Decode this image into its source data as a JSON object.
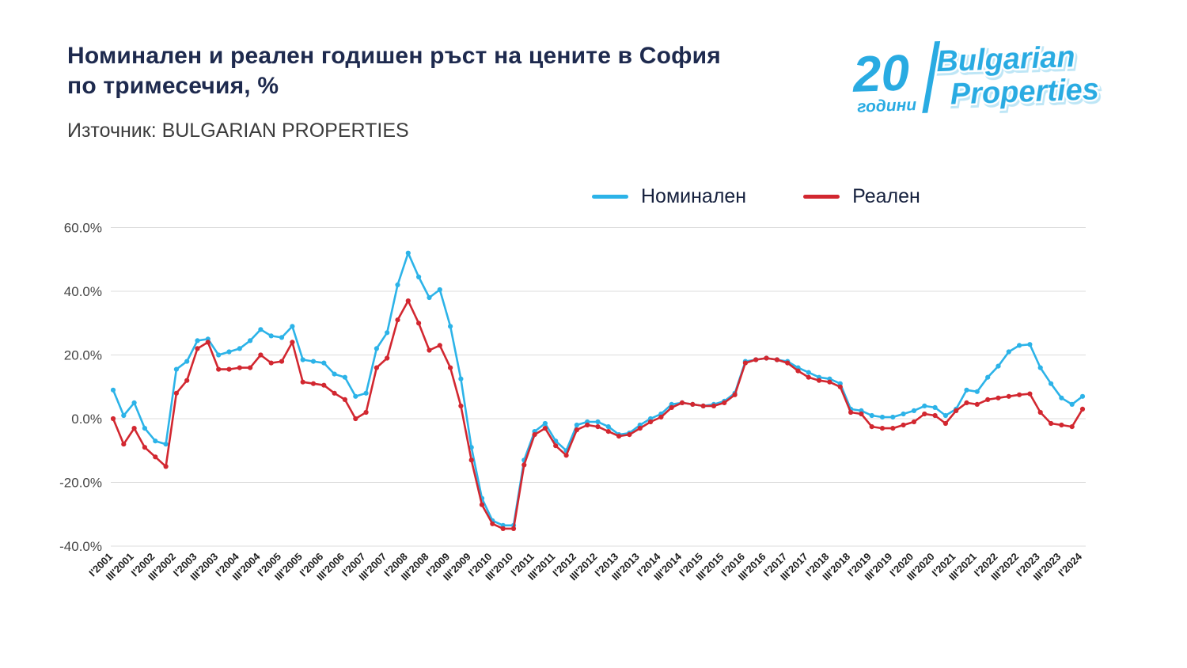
{
  "header": {
    "title_line1": "Номинален и реален годишен ръст на цените в София",
    "title_line2": "по тримесечия, %",
    "source": "Източник: BULGARIAN PROPERTIES"
  },
  "logo": {
    "number": "20",
    "years_word": "години",
    "brand_line1": "Bulgarian",
    "brand_line2": "Properties",
    "color": "#29ABE2"
  },
  "legend": [
    {
      "label": "Номинален",
      "color": "#2CB3E8"
    },
    {
      "label": "Реален",
      "color": "#D22730"
    }
  ],
  "chart_data": {
    "type": "line",
    "title": "Номинален и реален годишен ръст на цените в София по тримесечия, %",
    "source": "BULGARIAN PROPERTIES",
    "grid": true,
    "legend_position": "top",
    "ylim": [
      -40,
      60
    ],
    "yticks": [
      60,
      40,
      20,
      0,
      -20,
      -40
    ],
    "ytick_format": "percent_one_decimal",
    "tick_every": 2,
    "categories": [
      "I'2001",
      "II'2001",
      "III'2001",
      "IV'2001",
      "I'2002",
      "II'2002",
      "III'2002",
      "IV'2002",
      "I'2003",
      "II'2003",
      "III'2003",
      "IV'2003",
      "I'2004",
      "II'2004",
      "III'2004",
      "IV'2004",
      "I'2005",
      "II'2005",
      "III'2005",
      "IV'2005",
      "I'2006",
      "II'2006",
      "III'2006",
      "IV'2006",
      "I'2007",
      "II'2007",
      "III'2007",
      "IV'2007",
      "I'2008",
      "II'2008",
      "III'2008",
      "IV'2008",
      "I'2009",
      "II'2009",
      "III'2009",
      "IV'2009",
      "I'2010",
      "II'2010",
      "III'2010",
      "IV'2010",
      "I'2011",
      "II'2011",
      "III'2011",
      "IV'2011",
      "I'2012",
      "II'2012",
      "III'2012",
      "IV'2012",
      "I'2013",
      "II'2013",
      "III'2013",
      "IV'2013",
      "I'2014",
      "II'2014",
      "III'2014",
      "IV'2014",
      "I'2015",
      "II'2015",
      "III'2015",
      "IV'2015",
      "I'2016",
      "II'2016",
      "III'2016",
      "IV'2016",
      "I'2017",
      "II'2017",
      "III'2017",
      "IV'2017",
      "I'2018",
      "II'2018",
      "III'2018",
      "IV'2018",
      "I'2019",
      "II'2019",
      "III'2019",
      "IV'2019",
      "I'2020",
      "II'2020",
      "III'2020",
      "IV'2020",
      "I'2021",
      "II'2021",
      "III'2021",
      "IV'2021",
      "I'2022",
      "II'2022",
      "III'2022",
      "IV'2022",
      "I'2023",
      "II'2023",
      "III'2023",
      "IV'2023",
      "I'2024"
    ],
    "series": [
      {
        "name": "Номинален",
        "color": "#2CB3E8",
        "values": [
          9,
          1,
          5,
          -3,
          -7,
          -8,
          15.5,
          18,
          24.5,
          25,
          20,
          21,
          22,
          24.5,
          28,
          26,
          25.5,
          29,
          18.5,
          18,
          17.5,
          14,
          13,
          7,
          8,
          22,
          27,
          42,
          52,
          44.5,
          38,
          40.5,
          29,
          12.5,
          -9,
          -25,
          -32,
          -33.5,
          -33.5,
          -13,
          -4,
          -1.5,
          -7,
          -10,
          -2,
          -1,
          -1,
          -2.5,
          -5,
          -4.5,
          -2,
          0,
          1.5,
          4.5,
          5,
          4.5,
          4,
          4.5,
          5.5,
          8,
          18,
          18.5,
          19,
          18.5,
          18,
          16,
          14.5,
          13,
          12.5,
          11,
          3,
          2.5,
          1,
          0.5,
          0.5,
          1.5,
          2.5,
          4,
          3.5,
          1,
          3,
          9,
          8.5,
          13,
          16.5,
          21,
          23,
          23.3,
          16,
          11,
          6.5,
          4.5,
          7
        ]
      },
      {
        "name": "Реален",
        "color": "#D22730",
        "values": [
          0,
          -8,
          -3,
          -9,
          -12,
          -15,
          8,
          12,
          22,
          24,
          15.5,
          15.5,
          16,
          16,
          20,
          17.5,
          18,
          24,
          11.5,
          11,
          10.5,
          8,
          6,
          0,
          2,
          16,
          19,
          31,
          37,
          30,
          21.5,
          23,
          16,
          4,
          -13,
          -27,
          -33,
          -34.5,
          -34.5,
          -14.5,
          -5,
          -3,
          -8.5,
          -11.5,
          -3.5,
          -2,
          -2.5,
          -4,
          -5.5,
          -5,
          -3,
          -1,
          0.5,
          3.5,
          5,
          4.5,
          4,
          4,
          5,
          7.5,
          17.5,
          18.5,
          19,
          18.5,
          17.5,
          15,
          13,
          12,
          11.5,
          10,
          2,
          1.5,
          -2.5,
          -3,
          -3,
          -2,
          -1,
          1.5,
          1,
          -1.5,
          2.5,
          5,
          4.5,
          6,
          6.5,
          7,
          7.5,
          7.8,
          2,
          -1.5,
          -2,
          -2.5,
          3
        ]
      }
    ]
  }
}
